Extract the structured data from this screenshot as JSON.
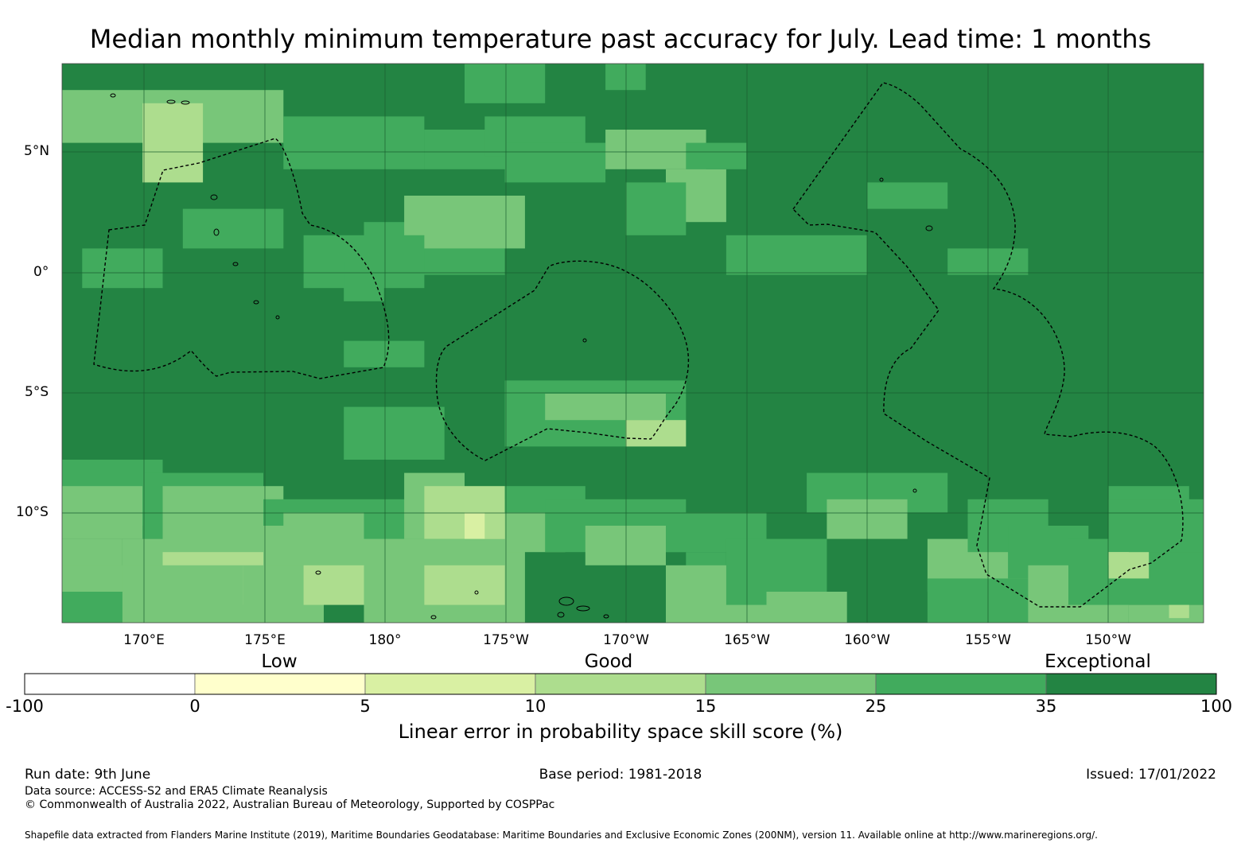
{
  "title": "Median monthly minimum temperature past accuracy for July. Lead time: 1 months",
  "map": {
    "lat_labels": [
      "5°N",
      "0°",
      "5°S",
      "10°S"
    ],
    "lon_labels": [
      "170°E",
      "175°E",
      "180°",
      "175°W",
      "170°W",
      "165°W",
      "160°W",
      "155°W",
      "150°W"
    ],
    "base_fill": "#238443",
    "eez_line_color": "#000000"
  },
  "colorbar": {
    "categories": [
      "Low",
      "Good",
      "Exceptional"
    ],
    "ticks": [
      "-100",
      "0",
      "5",
      "10",
      "15",
      "25",
      "35",
      "100"
    ],
    "colors": [
      "#ffffff",
      "#ffffcc",
      "#d9f0a3",
      "#addd8e",
      "#78c679",
      "#41ab5d",
      "#238443"
    ],
    "label": "Linear error in probability space skill score (%)"
  },
  "footer": {
    "run_date": "Run date: 9th June",
    "base_period": "Base period: 1981-2018",
    "issued": "Issued: 17/01/2022",
    "data_source": "Data source: ACCESS-S2 and ERA5 Climate Reanalysis",
    "copyright": "© Commonwealth of Australia 2022, Australian Bureau of Meteorology, Supported by COSPPac",
    "shapefile": "Shapefile data extracted from Flanders Marine Institute (2019), Maritime Boundaries Geodatabase: Maritime Boundaries and Exclusive Economic Zones (200NM), version 11. Available online at http://www.marineregions.org/."
  }
}
